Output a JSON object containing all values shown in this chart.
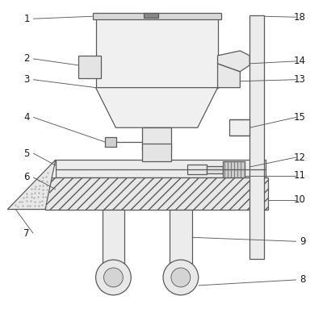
{
  "bg_color": "#ffffff",
  "line_color": "#5a5a5a",
  "label_color": "#1a1a1a",
  "fig_width": 4.06,
  "fig_height": 3.93,
  "label_fontsize": 8.5
}
